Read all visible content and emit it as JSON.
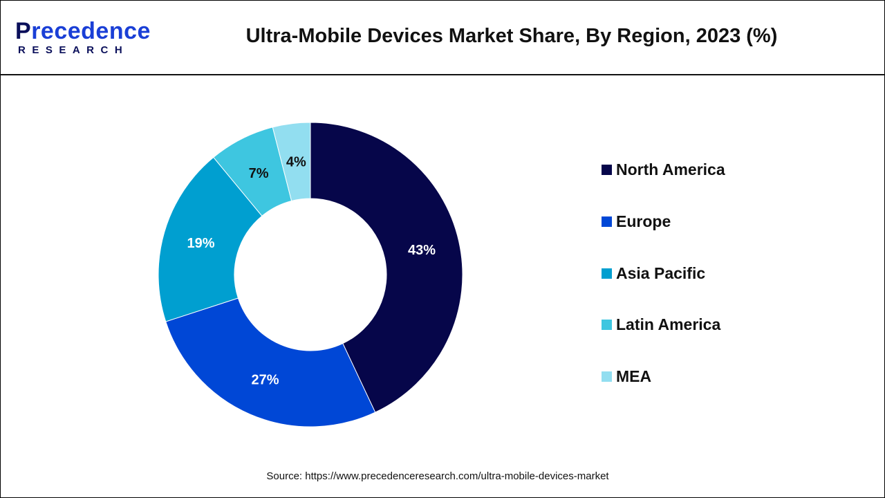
{
  "logo": {
    "top": "recedence",
    "top_initial": "P",
    "bottom": "RESEARCH"
  },
  "chart_data": {
    "type": "pie",
    "title": "Ultra-Mobile Devices Market Share, By Region, 2023 (%)",
    "donut": true,
    "categories": [
      "North America",
      "Europe",
      "Asia Pacific",
      "Latin America",
      "MEA"
    ],
    "values": [
      43,
      27,
      19,
      7,
      4
    ],
    "labels": [
      "43%",
      "27%",
      "19%",
      "7%",
      "4%"
    ],
    "colors": [
      "#06064a",
      "#0047d6",
      "#009fd0",
      "#3ec6e0",
      "#92def0"
    ],
    "label_colors": [
      "#ffffff",
      "#ffffff",
      "#ffffff",
      "#111111",
      "#111111"
    ],
    "legend_position": "right"
  },
  "source": "Source: https://www.precedenceresearch.com/ultra-mobile-devices-market"
}
